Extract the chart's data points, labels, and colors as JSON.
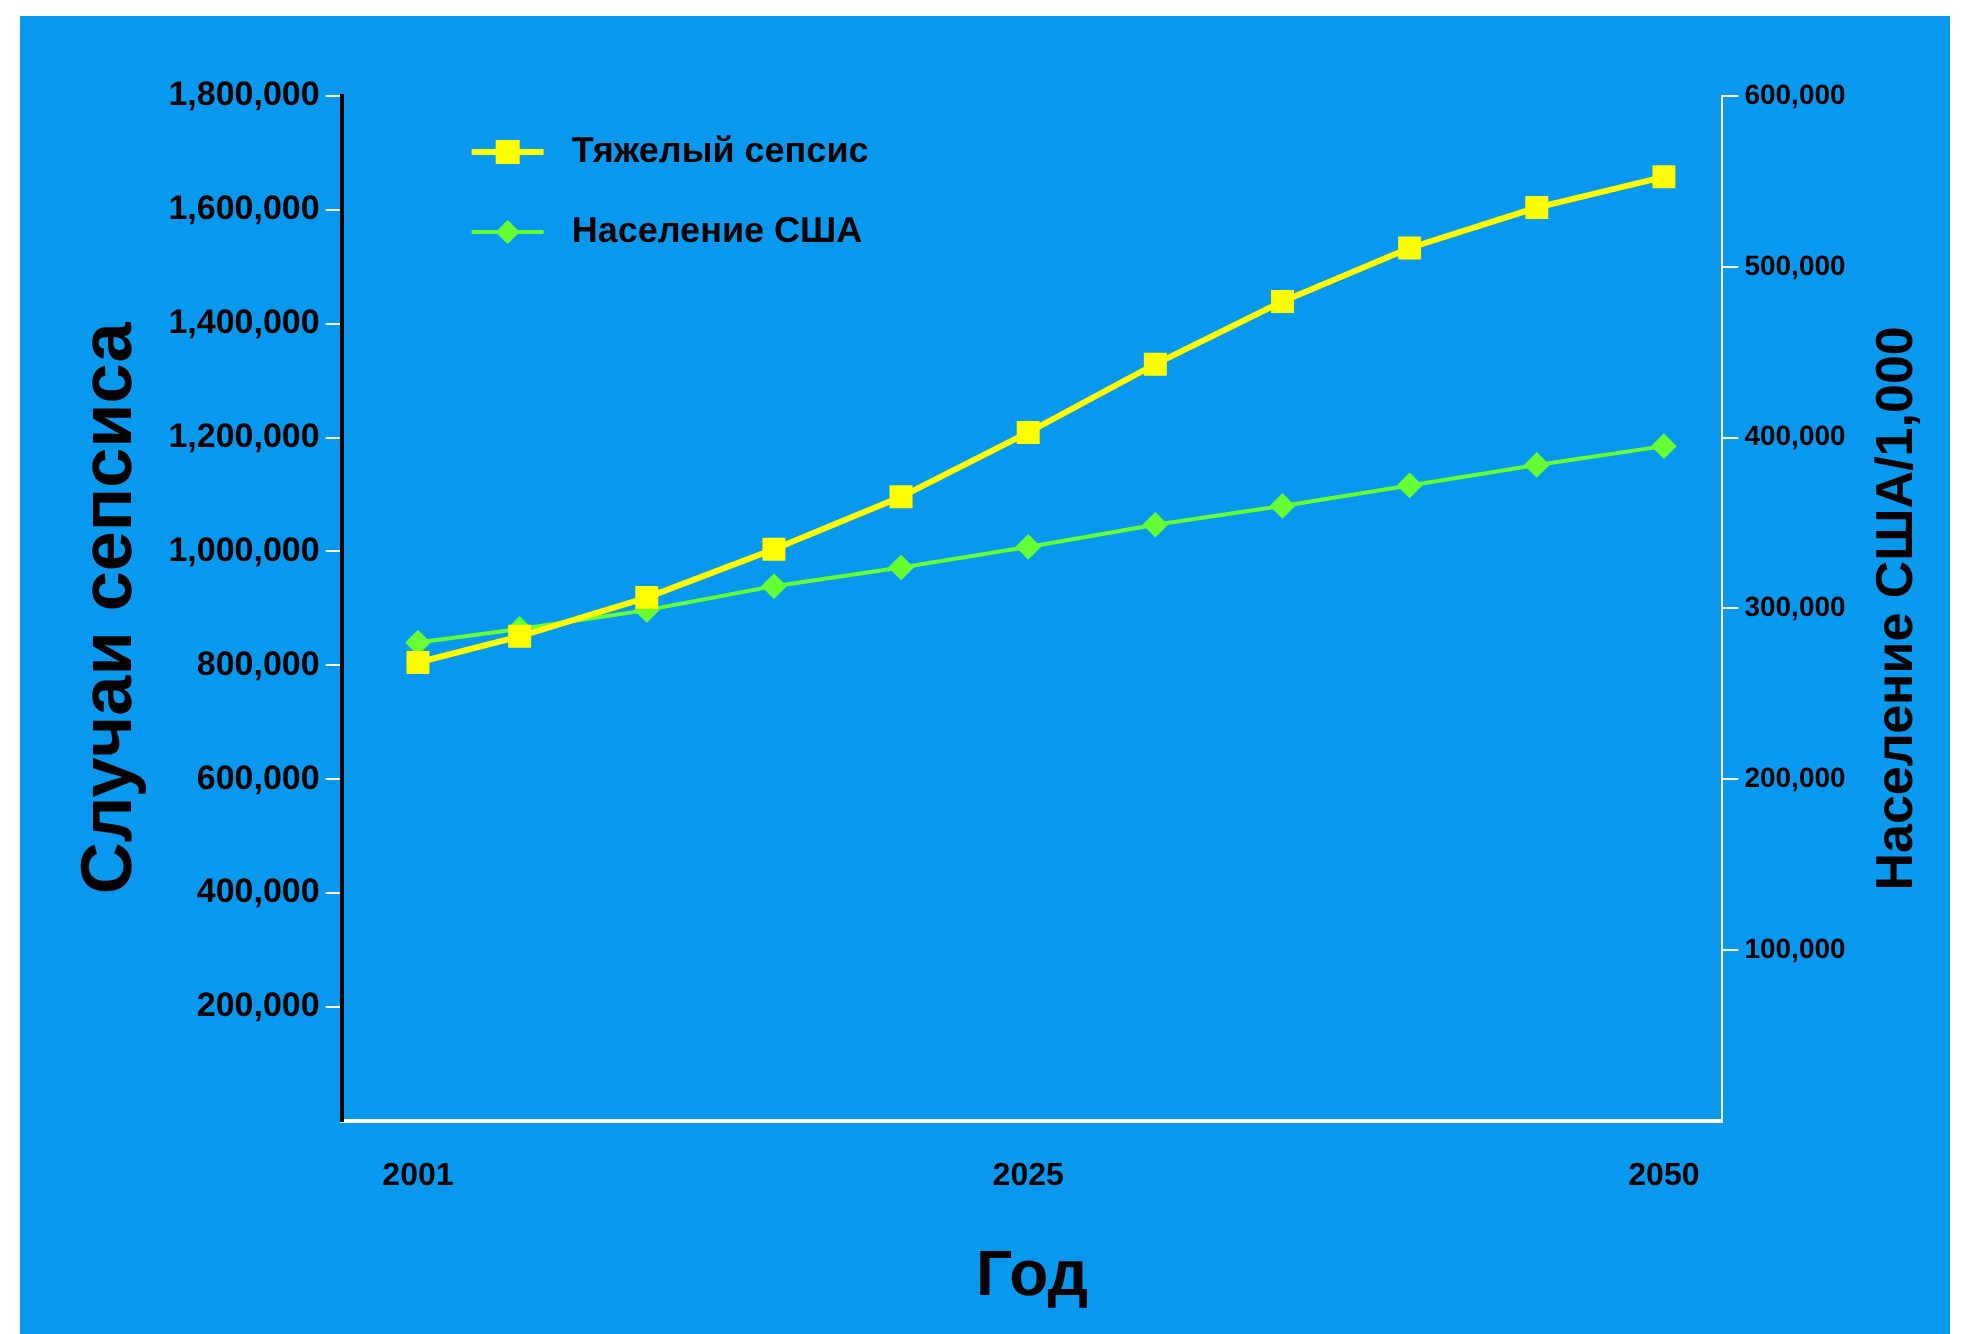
{
  "chart_data": {
    "type": "line",
    "xlabel": "Год",
    "ylabel": "Случаи сепсиса",
    "y2label": "Население США/1,000",
    "x": [
      2001,
      2005,
      2010,
      2015,
      2020,
      2025,
      2030,
      2035,
      2040,
      2045,
      2050
    ],
    "series": [
      {
        "name": "Тяжелый сепсис",
        "color": "#ffff00",
        "marker": "square",
        "values": [
          805000,
          851000,
          919000,
          1004000,
          1096000,
          1209000,
          1329000,
          1439000,
          1533000,
          1604000,
          1658000
        ]
      },
      {
        "name": "Население США",
        "color": "#66ff33",
        "marker": "diamond",
        "axis": "y2",
        "values": [
          280000,
          288000,
          299000,
          313000,
          324000,
          336000,
          349000,
          360000,
          372000,
          384000,
          395000
        ]
      }
    ],
    "xlim": [
      1998,
      2052.3
    ],
    "xticks": [
      2001,
      2025,
      2050
    ],
    "ylim": [
      0,
      1800000
    ],
    "yticks": [
      {
        "value": 200000,
        "label": "200,000"
      },
      {
        "value": 400000,
        "label": "400,000"
      },
      {
        "value": 600000,
        "label": "600,000"
      },
      {
        "value": 800000,
        "label": "800,000"
      },
      {
        "value": 1000000,
        "label": "1,000,000"
      },
      {
        "value": 1200000,
        "label": "1,200,000"
      },
      {
        "value": 1400000,
        "label": "1,400,000"
      },
      {
        "value": 1600000,
        "label": "1,600,000"
      },
      {
        "value": 1800000,
        "label": "1,800,000"
      }
    ],
    "y2lim": [
      0,
      600000
    ],
    "y2ticks": [
      {
        "value": 100000,
        "label": "100,000"
      },
      {
        "value": 200000,
        "label": "200,000"
      },
      {
        "value": 300000,
        "label": "300,000"
      },
      {
        "value": 400000,
        "label": "400,000"
      },
      {
        "value": 500000,
        "label": "500,000"
      },
      {
        "value": 600000,
        "label": "600,000"
      }
    ],
    "grid": false,
    "legend": "top left",
    "line_style": "solid"
  }
}
